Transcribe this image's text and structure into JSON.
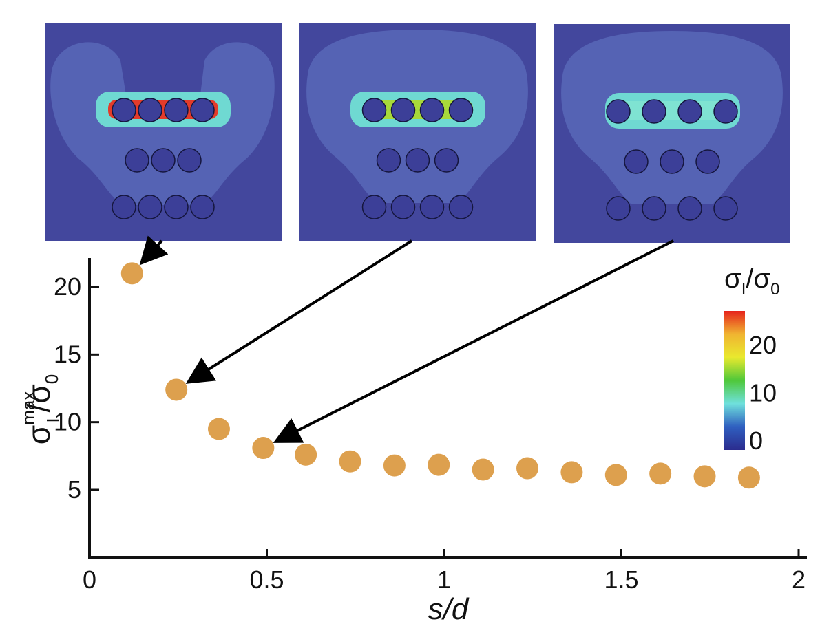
{
  "chart_data": {
    "type": "scatter",
    "xlabel": "s/d",
    "ylabel": {
      "base": "σ",
      "sup": "max",
      "sub": "I",
      "denom": "σ",
      "denom_sub": "0"
    },
    "xlim": [
      0,
      2
    ],
    "ylim": [
      0,
      22
    ],
    "xticks": [
      "0",
      "0.5",
      "1",
      "1.5",
      "2"
    ],
    "yticks": [
      "5",
      "10",
      "15",
      "20"
    ],
    "marker_color": "#DDA04E",
    "x": [
      0.12,
      0.245,
      0.365,
      0.49,
      0.61,
      0.735,
      0.86,
      0.985,
      1.11,
      1.235,
      1.36,
      1.485,
      1.61,
      1.735,
      1.86
    ],
    "y": [
      21.0,
      12.4,
      9.5,
      8.1,
      7.6,
      7.1,
      6.8,
      6.85,
      6.5,
      6.6,
      6.3,
      6.1,
      6.2,
      6.0,
      5.9
    ],
    "colorbar": {
      "title": {
        "base": "σ",
        "sub": "I",
        "denom": "σ",
        "denom_sub": "0"
      },
      "ticks": [
        "0",
        "10",
        "20"
      ],
      "range": [
        -2,
        27
      ],
      "colors": [
        "#2b2c8e",
        "#2f5fc0",
        "#6fe0dc",
        "#4fc83a",
        "#e9e92e",
        "#f0b431",
        "#e6231c"
      ]
    },
    "insets": [
      {
        "points_to_x": 0.12,
        "points_to_y": 21.0,
        "peak_color": "#e33b2a",
        "side_lobes": true
      },
      {
        "points_to_x": 0.245,
        "points_to_y": 12.4,
        "peak_color": "#a8d93a",
        "side_lobes": false
      },
      {
        "points_to_x": 0.49,
        "points_to_y": 8.1,
        "peak_color": "#7fe3d2",
        "side_lobes": false
      }
    ],
    "inset_background": "#43479d"
  }
}
